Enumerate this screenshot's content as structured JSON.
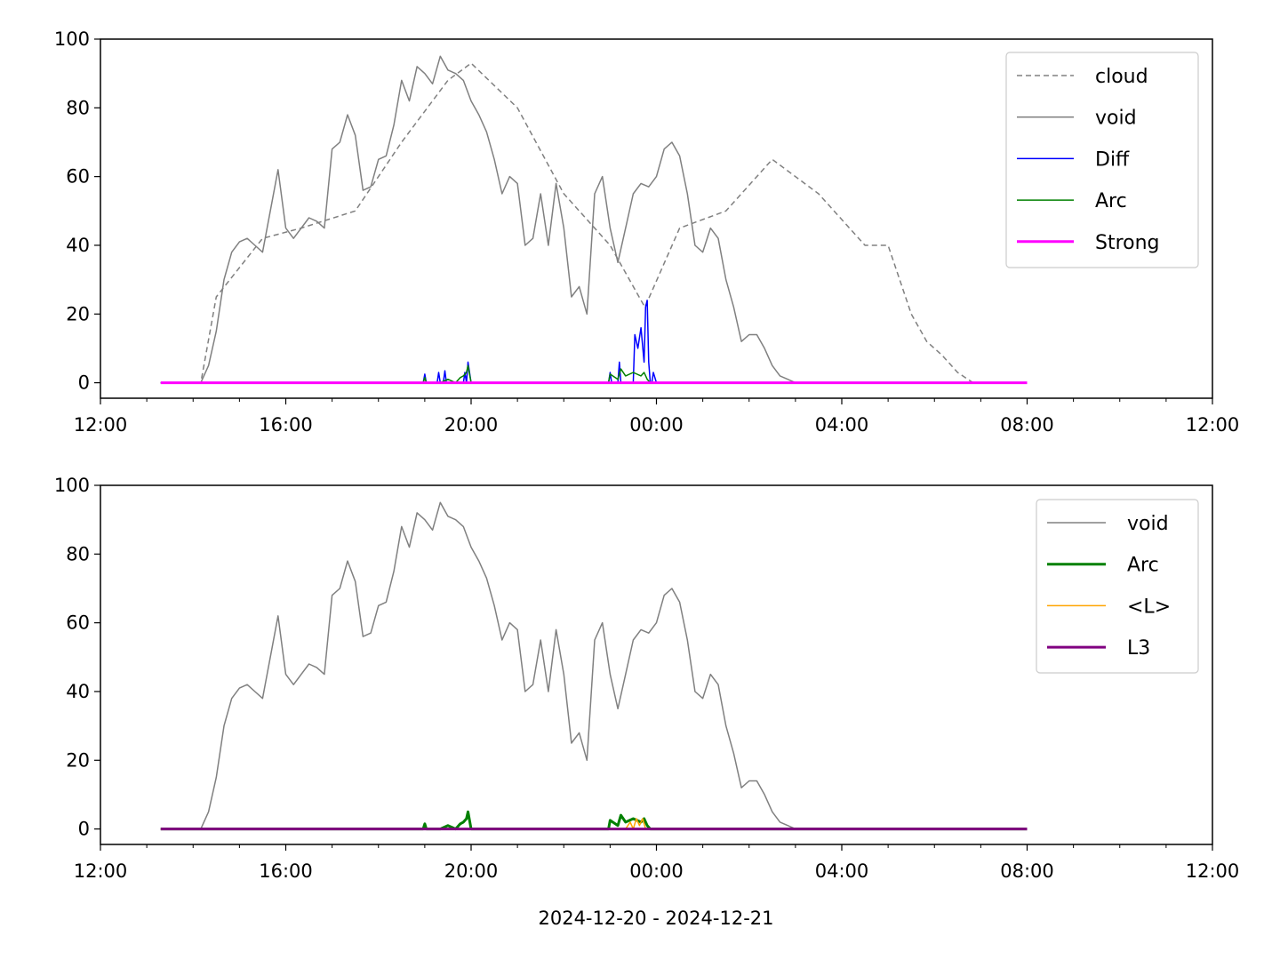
{
  "xcaption": "2024-12-20 - 2024-12-21",
  "chart_data": [
    {
      "type": "line",
      "x_unit": "time (hh:mm)",
      "xlim": [
        "12:00",
        "12:00 (+1 day)"
      ],
      "ylim": [
        -4.5,
        100
      ],
      "xticks": [
        "12:00",
        "16:00",
        "20:00",
        "00:00",
        "04:00",
        "08:00",
        "12:00"
      ],
      "yticks": [
        0,
        20,
        40,
        60,
        80,
        100
      ],
      "legend_position": "upper right",
      "legend": [
        {
          "name": "cloud",
          "color": "#808080",
          "style": "dashed",
          "width": 1.5
        },
        {
          "name": "void",
          "color": "#808080",
          "style": "solid",
          "width": 1.5
        },
        {
          "name": "Diff",
          "color": "#0000ff",
          "style": "solid",
          "width": 1.5
        },
        {
          "name": "Arc",
          "color": "#008000",
          "style": "solid",
          "width": 1.5
        },
        {
          "name": "Strong",
          "color": "#ff00ff",
          "style": "solid",
          "width": 3
        }
      ],
      "series": [
        {
          "name": "cloud",
          "color": "#808080",
          "style": "dashed",
          "width": 1.5,
          "t": [
            "13:18",
            "14:10",
            "14:30",
            "15:30",
            "16:20",
            "17:30",
            "18:30",
            "19:30",
            "20:00",
            "21:00",
            "22:00",
            "23:00",
            "23:45",
            "00:30",
            "01:30",
            "02:30",
            "03:30",
            "04:30",
            "05:00",
            "05:30",
            "05:50",
            "06:10",
            "06:30",
            "06:50",
            "08:00"
          ],
          "y": [
            0,
            0,
            25,
            42,
            45,
            50,
            70,
            88,
            93,
            80,
            55,
            40,
            22,
            45,
            50,
            65,
            55,
            40,
            40,
            20,
            12,
            8,
            3,
            0,
            0
          ]
        },
        {
          "name": "void",
          "color": "#808080",
          "style": "solid",
          "width": 1.5,
          "t": [
            "13:18",
            "14:10",
            "14:20",
            "14:30",
            "14:40",
            "14:50",
            "15:00",
            "15:10",
            "15:20",
            "15:30",
            "15:40",
            "15:50",
            "16:00",
            "16:10",
            "16:20",
            "16:30",
            "16:40",
            "16:50",
            "17:00",
            "17:10",
            "17:20",
            "17:30",
            "17:40",
            "17:50",
            "18:00",
            "18:10",
            "18:20",
            "18:30",
            "18:40",
            "18:50",
            "19:00",
            "19:10",
            "19:20",
            "19:30",
            "19:40",
            "19:50",
            "20:00",
            "20:10",
            "20:20",
            "20:30",
            "20:40",
            "20:50",
            "21:00",
            "21:10",
            "21:20",
            "21:30",
            "21:40",
            "21:50",
            "22:00",
            "22:10",
            "22:20",
            "22:30",
            "22:40",
            "22:50",
            "23:00",
            "23:10",
            "23:20",
            "23:30",
            "23:40",
            "23:50",
            "00:00",
            "00:10",
            "00:20",
            "00:30",
            "00:40",
            "00:50",
            "01:00",
            "01:10",
            "01:20",
            "01:30",
            "01:40",
            "01:50",
            "02:00",
            "02:10",
            "02:20",
            "02:30",
            "02:40",
            "02:50",
            "03:00",
            "03:10",
            "03:20",
            "03:30",
            "03:40",
            "03:50",
            "04:00",
            "04:10",
            "04:20",
            "04:30",
            "04:40",
            "04:50",
            "05:00",
            "05:10",
            "05:20",
            "05:30",
            "05:40",
            "05:50",
            "06:00",
            "06:10",
            "06:20",
            "06:30",
            "06:40",
            "06:50",
            "07:00",
            "08:00"
          ],
          "y": [
            0,
            0,
            5,
            15,
            30,
            38,
            41,
            42,
            40,
            38,
            50,
            62,
            45,
            42,
            45,
            48,
            47,
            45,
            68,
            70,
            78,
            72,
            56,
            57,
            65,
            66,
            75,
            88,
            82,
            92,
            90,
            87,
            95,
            91,
            90,
            88,
            82,
            78,
            73,
            65,
            55,
            60,
            58,
            40,
            42,
            55,
            40,
            58,
            45,
            25,
            28,
            20,
            55,
            60,
            45,
            35,
            45,
            55,
            58,
            57,
            60,
            68,
            70,
            66,
            55,
            40,
            38,
            45,
            42,
            30,
            22,
            12,
            14,
            14,
            10,
            5,
            2,
            1,
            0,
            0,
            0,
            0,
            0,
            0,
            0,
            0,
            0,
            0,
            0,
            0,
            0,
            0,
            0,
            0,
            0,
            0,
            0,
            0,
            0,
            0,
            0,
            0,
            0,
            0
          ]
        },
        {
          "name": "Diff",
          "color": "#0000ff",
          "style": "solid",
          "width": 1.5,
          "t": [
            "13:18",
            "18:58",
            "19:00",
            "19:02",
            "19:04",
            "19:16",
            "19:18",
            "19:20",
            "19:24",
            "19:26",
            "19:28",
            "19:50",
            "19:52",
            "19:54",
            "19:56",
            "20:00",
            "22:58",
            "23:00",
            "23:02",
            "23:10",
            "23:12",
            "23:14",
            "23:30",
            "23:32",
            "23:36",
            "23:40",
            "23:44",
            "23:46",
            "23:48",
            "23:50",
            "23:52",
            "23:54",
            "23:56",
            "00:00",
            "00:02",
            "00:04",
            "08:00"
          ],
          "y": [
            0,
            0,
            2.5,
            0,
            0,
            0,
            3,
            0,
            0,
            3.5,
            0,
            0,
            3,
            0,
            6,
            0,
            0,
            3,
            0,
            0,
            6,
            0,
            0,
            14,
            10,
            16,
            6,
            22,
            24,
            6,
            0,
            0,
            3,
            0,
            0,
            0,
            0
          ]
        },
        {
          "name": "Arc",
          "color": "#008000",
          "style": "solid",
          "width": 1.5,
          "t": [
            "13:18",
            "18:58",
            "19:00",
            "19:02",
            "19:20",
            "19:30",
            "19:40",
            "19:46",
            "19:50",
            "19:54",
            "19:56",
            "20:00",
            "22:58",
            "23:00",
            "23:10",
            "23:14",
            "23:20",
            "23:30",
            "23:40",
            "23:44",
            "23:48",
            "23:52",
            "08:00"
          ],
          "y": [
            0,
            0,
            1.5,
            0,
            0,
            1,
            0,
            1.5,
            2,
            3,
            5,
            0,
            0,
            2.5,
            1,
            4,
            2,
            3,
            2,
            3,
            1,
            0,
            0
          ]
        },
        {
          "name": "Strong",
          "color": "#ff00ff",
          "style": "solid",
          "width": 3,
          "t": [
            "13:18",
            "08:00"
          ],
          "y": [
            0,
            0
          ]
        }
      ]
    },
    {
      "type": "line",
      "x_unit": "time (hh:mm)",
      "xlim": [
        "12:00",
        "12:00 (+1 day)"
      ],
      "ylim": [
        -4.5,
        100
      ],
      "xticks": [
        "12:00",
        "16:00",
        "20:00",
        "00:00",
        "04:00",
        "08:00",
        "12:00"
      ],
      "yticks": [
        0,
        20,
        40,
        60,
        80,
        100
      ],
      "legend_position": "upper right",
      "legend": [
        {
          "name": "void",
          "color": "#808080",
          "style": "solid",
          "width": 1.5
        },
        {
          "name": "Arc",
          "color": "#008000",
          "style": "solid",
          "width": 3
        },
        {
          "name": "<L>",
          "color": "#ffa500",
          "style": "solid",
          "width": 1.5
        },
        {
          "name": "L3",
          "color": "#800080",
          "style": "solid",
          "width": 3
        }
      ],
      "series": [
        {
          "name": "void",
          "color": "#808080",
          "style": "solid",
          "width": 1.5,
          "t": [
            "13:18",
            "14:10",
            "14:20",
            "14:30",
            "14:40",
            "14:50",
            "15:00",
            "15:10",
            "15:20",
            "15:30",
            "15:40",
            "15:50",
            "16:00",
            "16:10",
            "16:20",
            "16:30",
            "16:40",
            "16:50",
            "17:00",
            "17:10",
            "17:20",
            "17:30",
            "17:40",
            "17:50",
            "18:00",
            "18:10",
            "18:20",
            "18:30",
            "18:40",
            "18:50",
            "19:00",
            "19:10",
            "19:20",
            "19:30",
            "19:40",
            "19:50",
            "20:00",
            "20:10",
            "20:20",
            "20:30",
            "20:40",
            "20:50",
            "21:00",
            "21:10",
            "21:20",
            "21:30",
            "21:40",
            "21:50",
            "22:00",
            "22:10",
            "22:20",
            "22:30",
            "22:40",
            "22:50",
            "23:00",
            "23:10",
            "23:20",
            "23:30",
            "23:40",
            "23:50",
            "00:00",
            "00:10",
            "00:20",
            "00:30",
            "00:40",
            "00:50",
            "01:00",
            "01:10",
            "01:20",
            "01:30",
            "01:40",
            "01:50",
            "02:00",
            "02:10",
            "02:20",
            "02:30",
            "02:40",
            "02:50",
            "03:00",
            "03:10",
            "03:20",
            "03:30",
            "03:40",
            "03:50",
            "04:00",
            "04:10",
            "04:20",
            "04:30",
            "04:40",
            "04:50",
            "05:00",
            "05:10",
            "05:20",
            "05:30",
            "05:40",
            "05:50",
            "06:00",
            "06:10",
            "06:20",
            "06:30",
            "06:40",
            "06:50",
            "07:00",
            "08:00"
          ],
          "y": [
            0,
            0,
            5,
            15,
            30,
            38,
            41,
            42,
            40,
            38,
            50,
            62,
            45,
            42,
            45,
            48,
            47,
            45,
            68,
            70,
            78,
            72,
            56,
            57,
            65,
            66,
            75,
            88,
            82,
            92,
            90,
            87,
            95,
            91,
            90,
            88,
            82,
            78,
            73,
            65,
            55,
            60,
            58,
            40,
            42,
            55,
            40,
            58,
            45,
            25,
            28,
            20,
            55,
            60,
            45,
            35,
            45,
            55,
            58,
            57,
            60,
            68,
            70,
            66,
            55,
            40,
            38,
            45,
            42,
            30,
            22,
            12,
            14,
            14,
            10,
            5,
            2,
            1,
            0,
            0,
            0,
            0,
            0,
            0,
            0,
            0,
            0,
            0,
            0,
            0,
            0,
            0,
            0,
            0,
            0,
            0,
            0,
            0,
            0,
            0,
            0,
            0,
            0,
            0
          ]
        },
        {
          "name": "Arc",
          "color": "#008000",
          "style": "solid",
          "width": 3,
          "t": [
            "13:18",
            "18:58",
            "19:00",
            "19:02",
            "19:20",
            "19:30",
            "19:40",
            "19:46",
            "19:50",
            "19:54",
            "19:56",
            "20:00",
            "22:58",
            "23:00",
            "23:10",
            "23:14",
            "23:20",
            "23:30",
            "23:40",
            "23:44",
            "23:48",
            "23:52",
            "08:00"
          ],
          "y": [
            0,
            0,
            1.5,
            0,
            0,
            1,
            0,
            1.5,
            2,
            3,
            5,
            0,
            0,
            2.5,
            1,
            4,
            2,
            3,
            2,
            3,
            1,
            0,
            0
          ]
        },
        {
          "name": "<L>",
          "color": "#ffa500",
          "style": "solid",
          "width": 1.5,
          "t": [
            "13:18",
            "23:20",
            "23:26",
            "23:30",
            "23:34",
            "23:38",
            "23:42",
            "23:46",
            "08:00"
          ],
          "y": [
            0,
            0,
            2,
            0,
            3,
            1,
            3,
            0,
            0
          ]
        },
        {
          "name": "L3",
          "color": "#800080",
          "style": "solid",
          "width": 3,
          "t": [
            "13:18",
            "08:00"
          ],
          "y": [
            0,
            0
          ]
        }
      ]
    }
  ]
}
